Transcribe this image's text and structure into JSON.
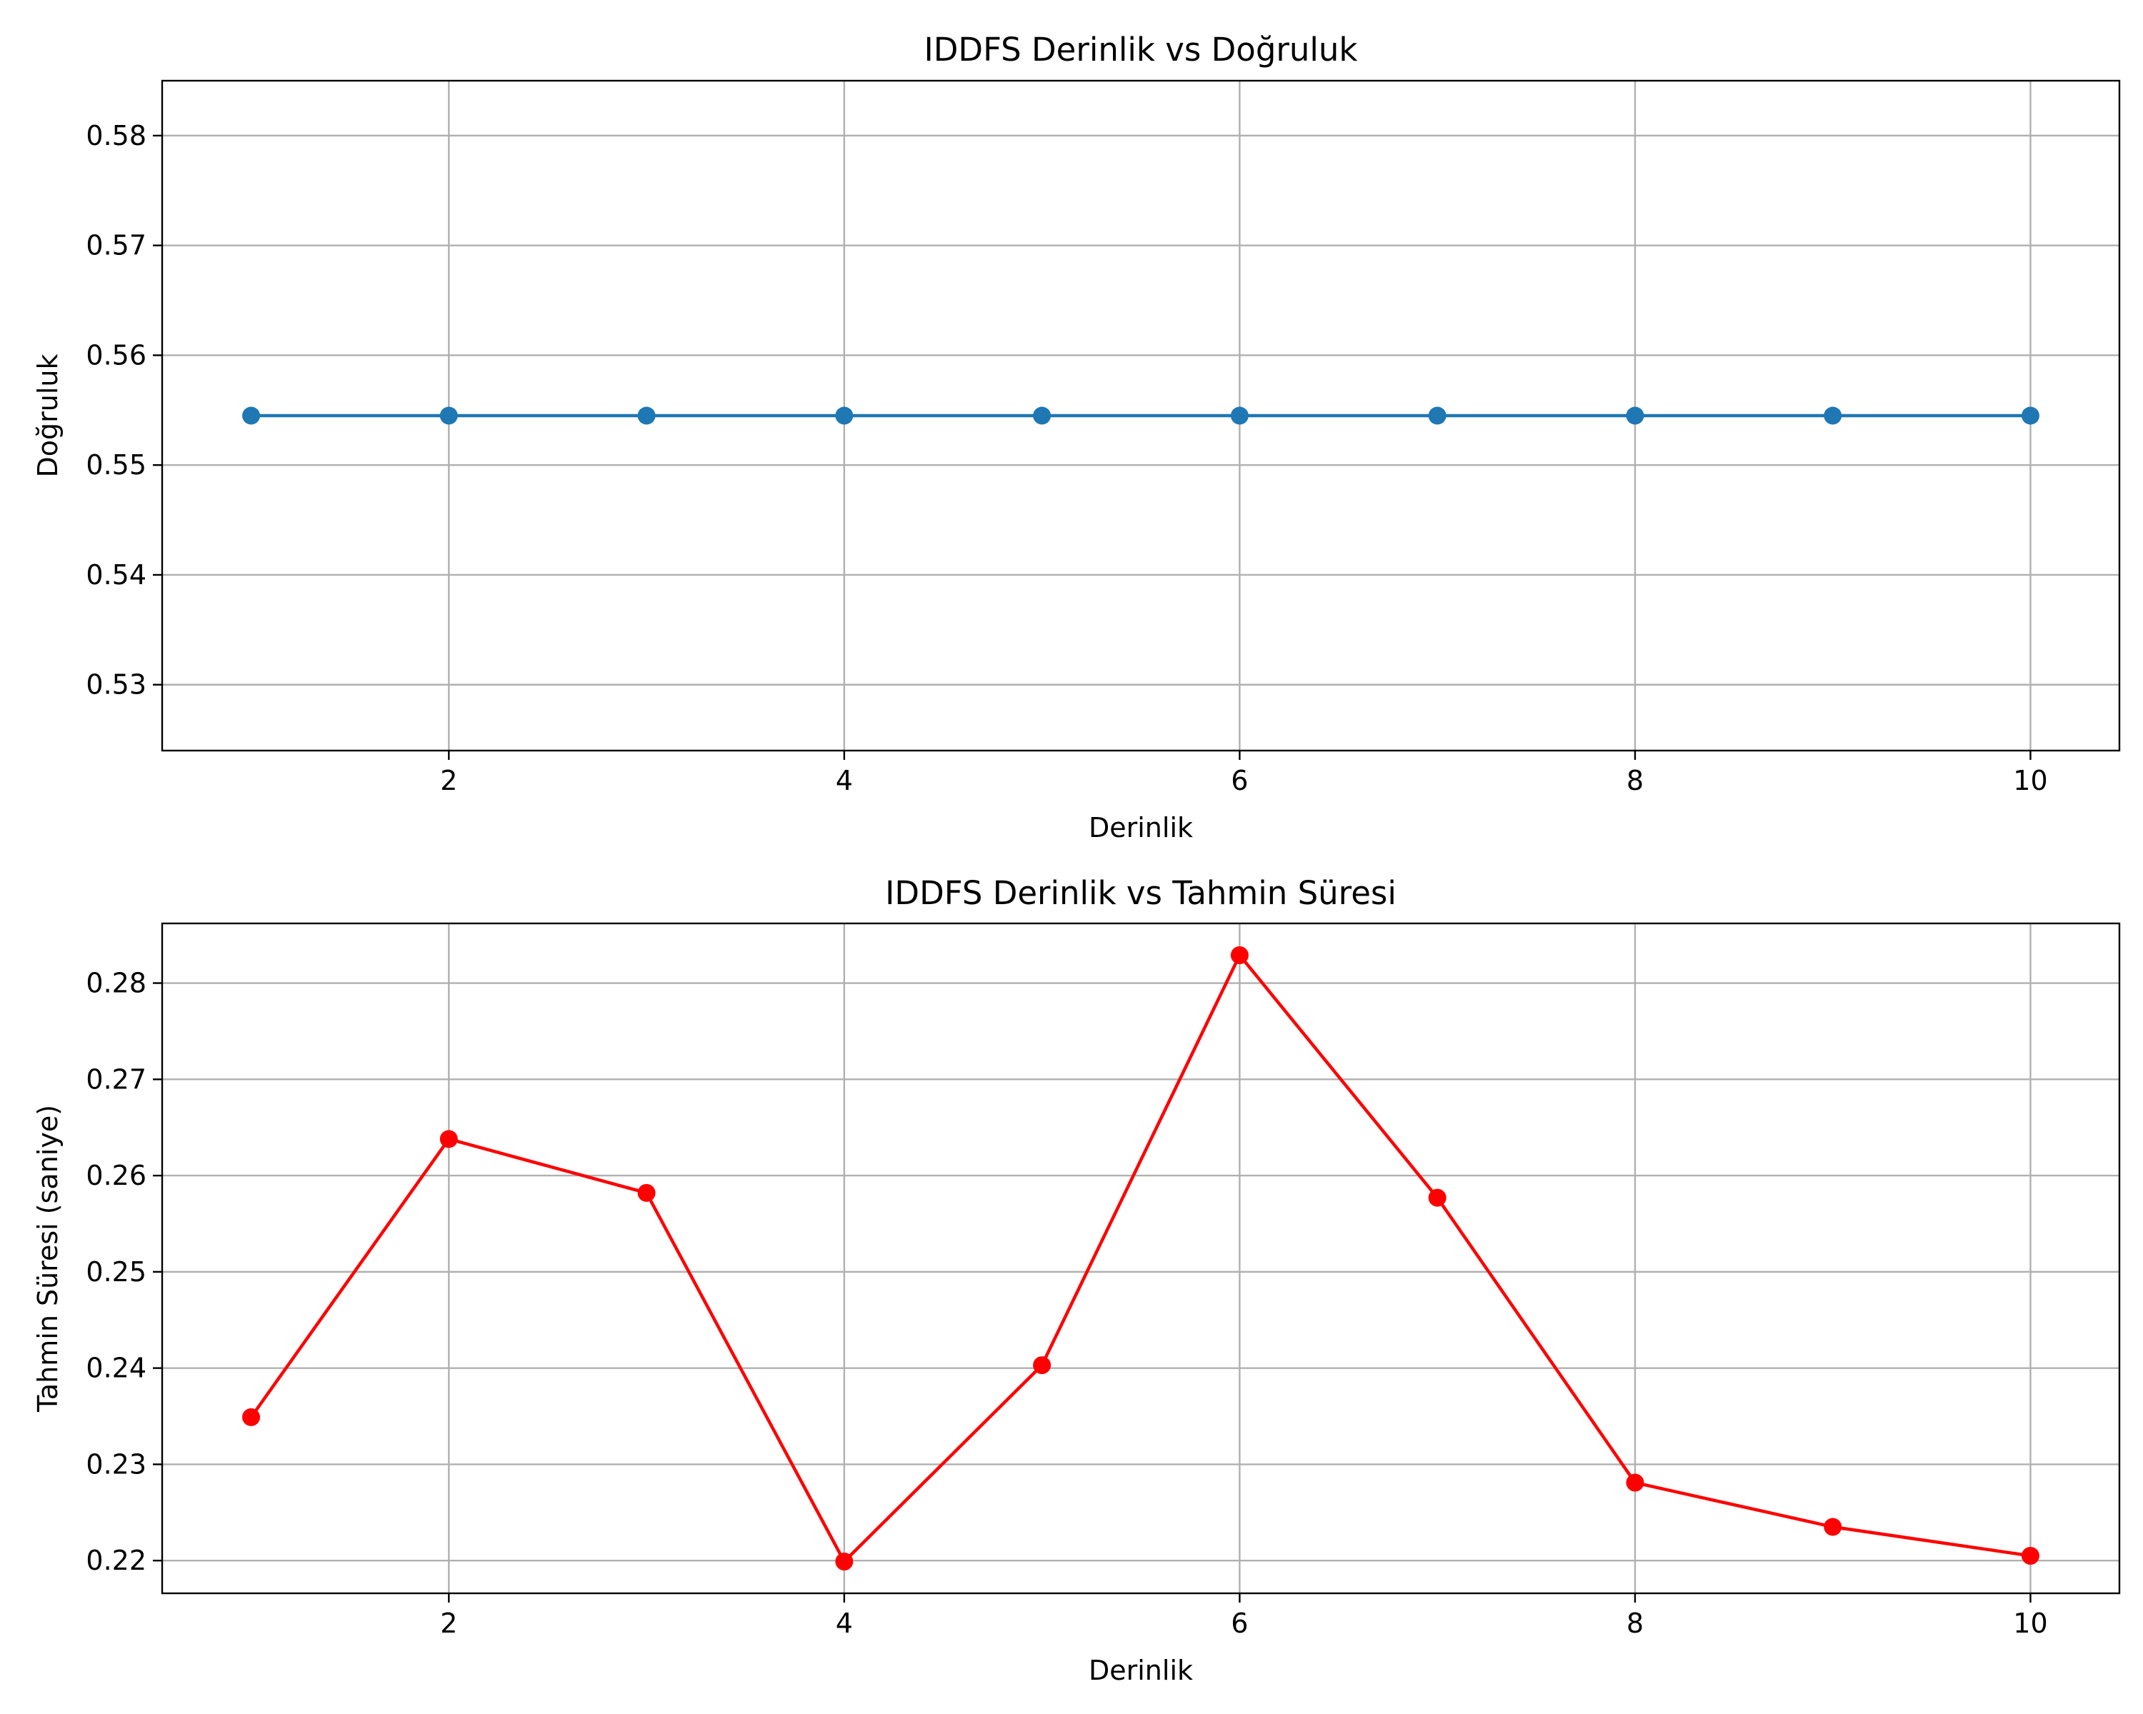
{
  "chart_data": [
    {
      "type": "line",
      "title": "IDDFS Derinlik vs Doğruluk",
      "xlabel": "Derinlik",
      "ylabel": "Doğruluk",
      "x": [
        1,
        2,
        3,
        4,
        5,
        6,
        7,
        8,
        9,
        10
      ],
      "series": [
        {
          "values": [
            0.5545,
            0.5545,
            0.5545,
            0.5545,
            0.5545,
            0.5545,
            0.5545,
            0.5545,
            0.5545,
            0.5545
          ],
          "color": "#1f77b4",
          "marker": "circle"
        }
      ],
      "xlim": [
        0.55,
        10.45
      ],
      "ylim": [
        0.524,
        0.585
      ],
      "xticks": [
        2,
        4,
        6,
        8,
        10
      ],
      "yticks": [
        0.53,
        0.54,
        0.55,
        0.56,
        0.57,
        0.58
      ],
      "grid": true
    },
    {
      "type": "line",
      "title": "IDDFS Derinlik vs Tahmin Süresi",
      "xlabel": "Derinlik",
      "ylabel": "Tahmin Süresi (saniye)",
      "x": [
        1,
        2,
        3,
        4,
        5,
        6,
        7,
        8,
        9,
        10
      ],
      "series": [
        {
          "values": [
            0.2349,
            0.2638,
            0.2582,
            0.2199,
            0.2403,
            0.2829,
            0.2577,
            0.2281,
            0.2235,
            0.2205
          ],
          "color": "#ff0000",
          "marker": "circle"
        }
      ],
      "xlim": [
        0.55,
        10.45
      ],
      "ylim": [
        0.2166,
        0.2862
      ],
      "xticks": [
        2,
        4,
        6,
        8,
        10
      ],
      "yticks": [
        0.22,
        0.23,
        0.24,
        0.25,
        0.26,
        0.27,
        0.28
      ],
      "grid": true
    }
  ]
}
